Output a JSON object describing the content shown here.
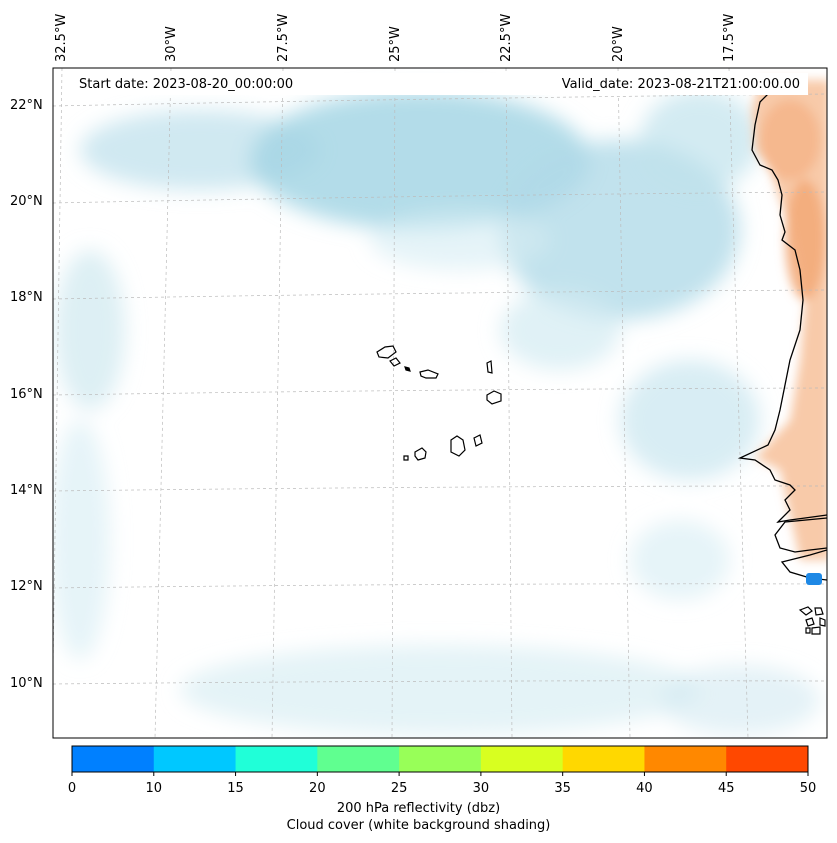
{
  "map": {
    "lon_labels": [
      "32.5°W",
      "30°W",
      "27.5°W",
      "25°W",
      "22.5°W",
      "20°W",
      "17.5°W"
    ],
    "lat_labels": [
      "22°N",
      "20°N",
      "18°N",
      "16°N",
      "14°N",
      "12°N",
      "10°N"
    ],
    "start_date": "Start date: 2023-08-20_00:00:00",
    "valid_date": "Valid_date: 2023-08-21T21:00:00.00",
    "extent": {
      "lon_min": -33,
      "lon_max": -16,
      "lat_min": 9,
      "lat_max": 22.8
    },
    "colors": {
      "cloud_light": "#cfe9f1",
      "cloud_mid": "#a9d8e6",
      "land_warm": "#f6b98a",
      "coast": "#000000",
      "reflectivity_patch": "#1e88e5"
    }
  },
  "colorbar": {
    "ticks": [
      "0",
      "10",
      "15",
      "20",
      "25",
      "30",
      "35",
      "40",
      "45",
      "50"
    ],
    "colors": [
      "#0080ff",
      "#00c8ff",
      "#20ffd8",
      "#60ff90",
      "#98ff58",
      "#d8ff20",
      "#ffd800",
      "#ff8800",
      "#ff4800"
    ],
    "label_line1": "200 hPa reflectivity (dbz)",
    "label_line2": "Cloud cover (white background shading)"
  }
}
